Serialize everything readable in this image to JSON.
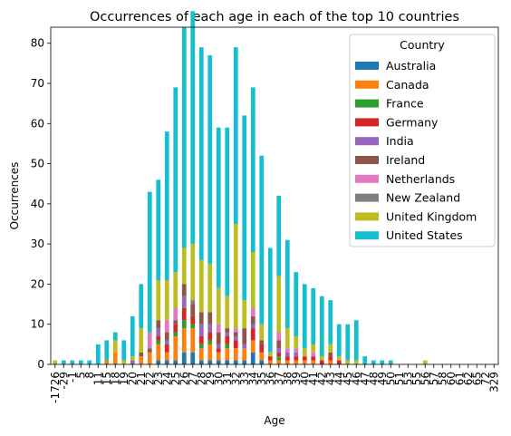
{
  "chart_data": {
    "type": "bar",
    "stacked": true,
    "title": "Occurrences of each age in each of the top 10 countries",
    "xlabel": "Age",
    "ylabel": "Occurrences",
    "ylim": [
      0,
      84
    ],
    "yticks": [
      0,
      10,
      20,
      30,
      40,
      50,
      60,
      70,
      80
    ],
    "legend_title": "Country",
    "legend_position": "top-right",
    "categories": [
      "-1726",
      "-29",
      "-1",
      "5",
      "8",
      "11",
      "15",
      "18",
      "19",
      "20",
      "21",
      "22",
      "23",
      "24",
      "25",
      "26",
      "27",
      "28",
      "29",
      "30",
      "31",
      "32",
      "33",
      "34",
      "35",
      "36",
      "37",
      "38",
      "39",
      "40",
      "41",
      "42",
      "43",
      "44",
      "45",
      "46",
      "47",
      "48",
      "49",
      "50",
      "51",
      "53",
      "55",
      "56",
      "57",
      "58",
      "60",
      "61",
      "62",
      "65",
      "72",
      "329"
    ],
    "category_labels_shown": [
      "-1726",
      "-29",
      "-1",
      "5",
      "8",
      "11",
      "15",
      "18",
      "19",
      "20",
      "21",
      "22",
      "23",
      "24",
      "25",
      "26",
      "27",
      "28",
      "29",
      "30",
      "31",
      "32",
      "33",
      "34",
      "35",
      "36",
      "37",
      "38",
      "39",
      "40",
      "41",
      "42",
      "43",
      "44",
      "45",
      "46",
      "47",
      "48",
      "49",
      "50",
      "51",
      "53",
      "55",
      "56",
      "57",
      "58",
      "60",
      "61",
      "62",
      "65",
      "72",
      "329"
    ],
    "series": [
      {
        "name": "Australia",
        "color": "#1f77b4",
        "values": [
          0,
          0,
          0,
          0,
          0,
          0,
          0,
          0,
          0,
          0,
          0,
          0,
          1,
          1,
          1,
          3,
          3,
          1,
          1,
          1,
          1,
          1,
          1,
          3,
          1,
          0,
          0,
          0,
          0,
          0,
          0,
          0,
          0,
          0,
          0,
          0,
          0,
          0,
          0,
          0,
          0,
          0,
          0,
          0,
          0,
          0,
          0,
          0,
          0,
          0,
          0,
          0
        ]
      },
      {
        "name": "Canada",
        "color": "#ff7f0e",
        "values": [
          0,
          0,
          0,
          0,
          0,
          0,
          1,
          3,
          0,
          0,
          2,
          3,
          4,
          2,
          6,
          6,
          6,
          3,
          4,
          2,
          3,
          3,
          3,
          3,
          2,
          1,
          1,
          1,
          1,
          1,
          1,
          0,
          1,
          0,
          0,
          0,
          0,
          0,
          0,
          0,
          0,
          0,
          0,
          0,
          0,
          0,
          0,
          0,
          0,
          0,
          0,
          0
        ]
      },
      {
        "name": "France",
        "color": "#2ca02c",
        "values": [
          0,
          0,
          0,
          0,
          0,
          0,
          0,
          0,
          0,
          0,
          0,
          0,
          1,
          0,
          1,
          2,
          1,
          1,
          1,
          0,
          1,
          0,
          0,
          0,
          0,
          0,
          1,
          0,
          0,
          0,
          0,
          0,
          0,
          0,
          0,
          0,
          0,
          0,
          0,
          0,
          0,
          0,
          0,
          0,
          0,
          0,
          0,
          0,
          0,
          0,
          0,
          0
        ]
      },
      {
        "name": "Germany",
        "color": "#d62728",
        "values": [
          0,
          0,
          0,
          0,
          0,
          0,
          0,
          0,
          0,
          0,
          0,
          0,
          1,
          2,
          2,
          3,
          2,
          2,
          2,
          1,
          2,
          2,
          0,
          3,
          2,
          1,
          1,
          1,
          1,
          1,
          1,
          1,
          1,
          1,
          0,
          0,
          0,
          0,
          0,
          0,
          0,
          0,
          0,
          0,
          0,
          0,
          0,
          0,
          0,
          0,
          0,
          0
        ]
      },
      {
        "name": "India",
        "color": "#9467bd",
        "values": [
          0,
          0,
          0,
          0,
          0,
          0,
          0,
          0,
          0,
          1,
          0,
          0,
          2,
          1,
          0,
          3,
          0,
          3,
          2,
          1,
          1,
          1,
          1,
          1,
          0,
          0,
          1,
          1,
          1,
          0,
          0,
          0,
          0,
          0,
          0,
          0,
          0,
          0,
          0,
          0,
          0,
          0,
          0,
          0,
          0,
          0,
          0,
          0,
          0,
          0,
          0,
          0
        ]
      },
      {
        "name": "Ireland",
        "color": "#8c564b",
        "values": [
          0,
          0,
          0,
          0,
          0,
          0,
          0,
          0,
          0,
          0,
          1,
          1,
          2,
          2,
          1,
          3,
          3,
          3,
          3,
          3,
          1,
          1,
          4,
          2,
          1,
          0,
          2,
          0,
          0,
          0,
          0,
          0,
          1,
          0,
          0,
          0,
          0,
          0,
          0,
          0,
          0,
          0,
          0,
          0,
          0,
          0,
          0,
          0,
          0,
          0,
          0,
          0
        ]
      },
      {
        "name": "Netherlands",
        "color": "#e377c2",
        "values": [
          0,
          0,
          0,
          0,
          0,
          0,
          0,
          0,
          0,
          0,
          0,
          4,
          0,
          3,
          3,
          0,
          0,
          0,
          0,
          2,
          0,
          1,
          0,
          2,
          0,
          0,
          2,
          1,
          1,
          0,
          1,
          0,
          0,
          0,
          0,
          0,
          0,
          0,
          0,
          0,
          0,
          0,
          0,
          0,
          0,
          0,
          0,
          0,
          0,
          0,
          0,
          0
        ]
      },
      {
        "name": "New Zealand",
        "color": "#7f7f7f",
        "values": [
          0,
          0,
          0,
          0,
          0,
          0,
          0,
          0,
          0,
          0,
          0,
          0,
          0,
          0,
          0,
          0,
          1,
          0,
          0,
          0,
          0,
          0,
          0,
          0,
          0,
          0,
          0,
          0,
          0,
          0,
          0,
          0,
          0,
          0,
          0,
          0,
          0,
          0,
          0,
          0,
          0,
          0,
          0,
          0,
          0,
          0,
          0,
          0,
          0,
          0,
          0,
          0
        ]
      },
      {
        "name": "United Kingdom",
        "color": "#bcbd22",
        "values": [
          1,
          0,
          0,
          0,
          0,
          0,
          0,
          3,
          1,
          1,
          6,
          0,
          10,
          10,
          9,
          9,
          14,
          13,
          12,
          9,
          8,
          26,
          7,
          14,
          4,
          1,
          14,
          5,
          3,
          2,
          2,
          1,
          2,
          1,
          1,
          1,
          0,
          0,
          0,
          0,
          0,
          0,
          0,
          1,
          0,
          0,
          0,
          0,
          0,
          0,
          0,
          0
        ]
      },
      {
        "name": "United States",
        "color": "#17becf",
        "values": [
          0,
          1,
          1,
          1,
          1,
          5,
          5,
          2,
          5,
          10,
          11,
          35,
          25,
          37,
          46,
          55,
          58,
          53,
          52,
          40,
          42,
          44,
          46,
          41,
          42,
          26,
          20,
          22,
          16,
          16,
          14,
          15,
          11,
          8,
          9,
          10,
          2,
          1,
          1,
          1,
          0,
          0,
          0,
          0,
          0,
          0,
          0,
          0,
          0,
          0,
          0,
          0
        ]
      }
    ],
    "totals_note": "Bar heights read approximately from the chart"
  }
}
